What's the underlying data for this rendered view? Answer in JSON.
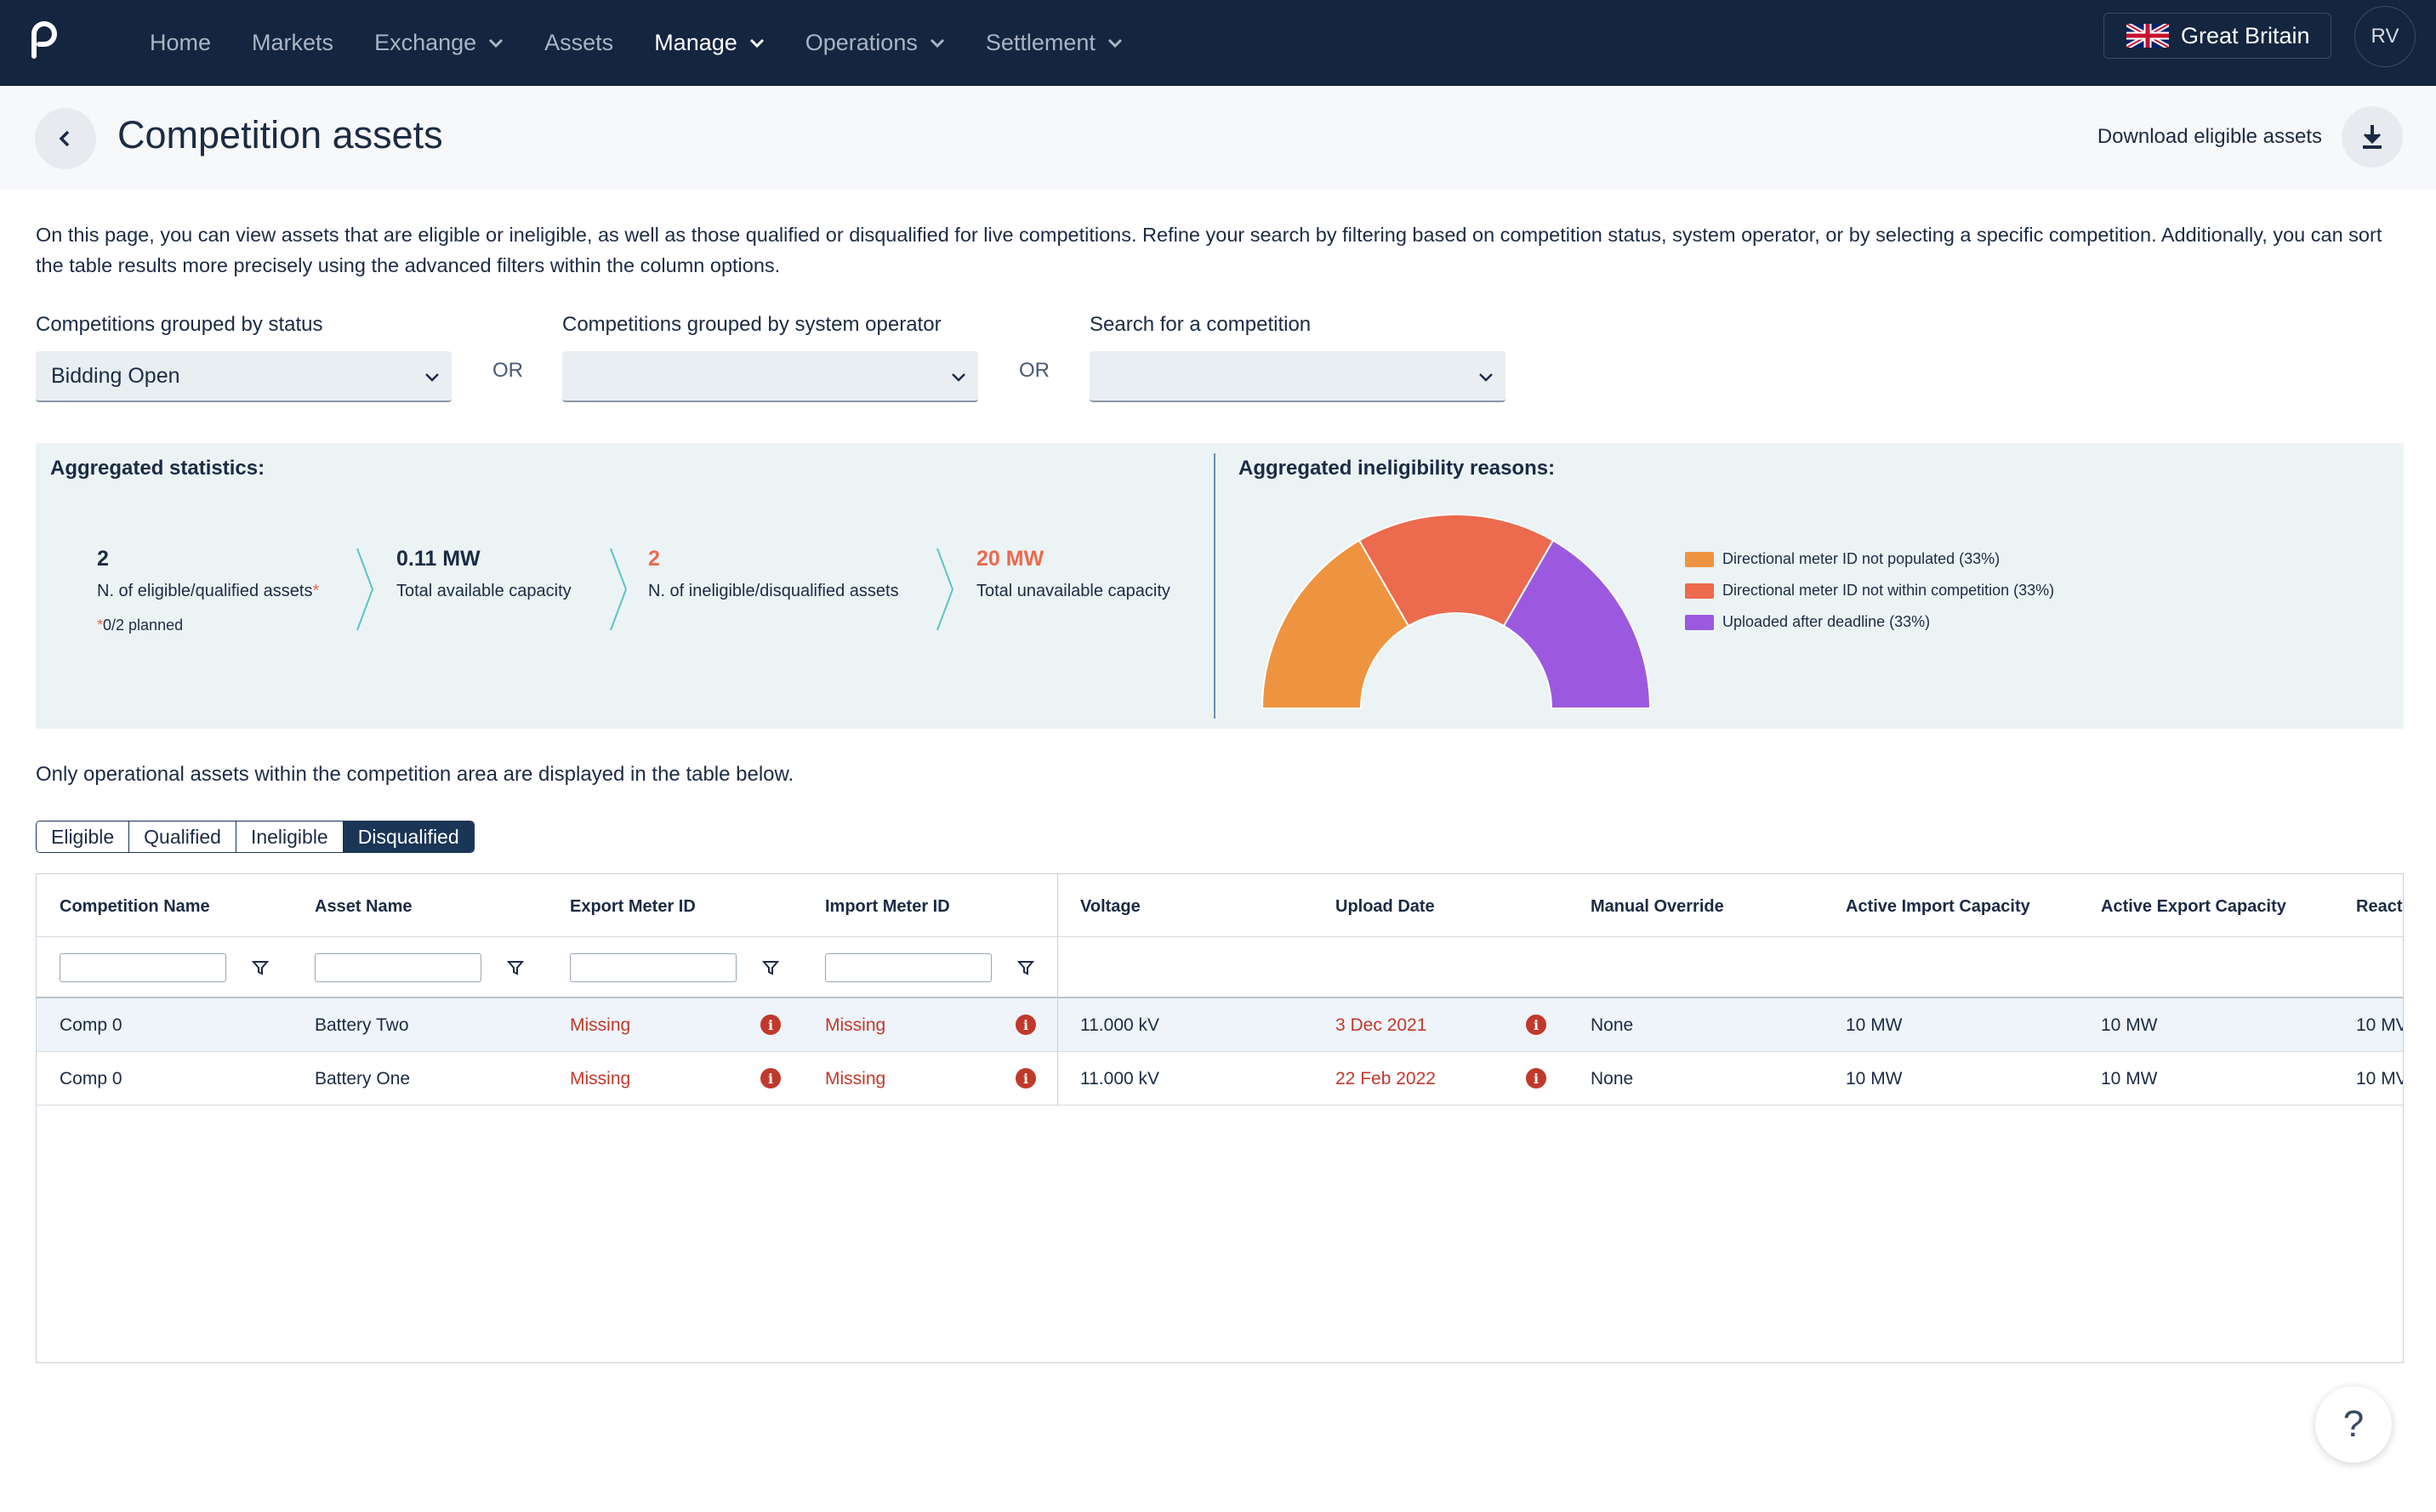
{
  "nav": {
    "items": [
      {
        "label": "Home",
        "dropdown": false,
        "active": false
      },
      {
        "label": "Markets",
        "dropdown": false,
        "active": false
      },
      {
        "label": "Exchange",
        "dropdown": true,
        "active": false
      },
      {
        "label": "Assets",
        "dropdown": false,
        "active": false
      },
      {
        "label": "Manage",
        "dropdown": true,
        "active": true
      },
      {
        "label": "Operations",
        "dropdown": true,
        "active": false
      },
      {
        "label": "Settlement",
        "dropdown": true,
        "active": false
      }
    ],
    "region": "Great Britain",
    "avatar_initials": "RV"
  },
  "header": {
    "title": "Competition assets",
    "download_label": "Download eligible assets"
  },
  "intro_text": "On this page, you can view assets that are eligible or ineligible, as well as those qualified or disqualified for live competitions. Refine your search by filtering based on competition status, system operator, or by selecting a specific competition. Additionally, you can sort the table results more precisely using the advanced filters within the column options.",
  "filters": {
    "status_label": "Competitions grouped by status",
    "status_value": "Bidding Open",
    "operator_label": "Competitions grouped by system operator",
    "operator_value": "",
    "competition_label": "Search for a competition",
    "competition_value": "",
    "or_text": "OR"
  },
  "stats": {
    "title": "Aggregated statistics:",
    "eligible_count": "2",
    "eligible_label": "N. of eligible/qualified assets",
    "eligible_asterisk": "*",
    "planned_note": "0/2 planned",
    "available_capacity": "0.11 MW",
    "available_label": "Total available capacity",
    "ineligible_count": "2",
    "ineligible_label": "N. of ineligible/disqualified assets",
    "unavailable_capacity": "20 MW",
    "unavailable_label": "Total unavailable capacity"
  },
  "ineligibility": {
    "title": "Aggregated ineligibility reasons:",
    "legend": [
      {
        "label": "Directional meter ID not populated (33%)",
        "color": "#ee9440"
      },
      {
        "label": "Directional meter ID not within competition (33%)",
        "color": "#ec6a4d"
      },
      {
        "label": "Uploaded after deadline (33%)",
        "color": "#9b59e0"
      }
    ]
  },
  "chart_data": {
    "type": "pie",
    "variant": "half-donut",
    "categories": [
      "Directional meter ID not populated",
      "Directional meter ID not within competition",
      "Uploaded after deadline"
    ],
    "values": [
      33,
      33,
      33
    ],
    "colors": [
      "#ee9440",
      "#ec6a4d",
      "#9b59e0"
    ],
    "legend_position": "right"
  },
  "table_note": "Only operational assets within the competition area are displayed in the table below.",
  "tabs": [
    {
      "label": "Eligible",
      "active": false
    },
    {
      "label": "Qualified",
      "active": false
    },
    {
      "label": "Ineligible",
      "active": false
    },
    {
      "label": "Disqualified",
      "active": true
    }
  ],
  "table": {
    "columns": [
      "Competition Name",
      "Asset Name",
      "Export Meter ID",
      "Import Meter ID",
      "Voltage",
      "Upload Date",
      "Manual Override",
      "Active Import Capacity",
      "Active Export Capacity",
      "React"
    ],
    "rows": [
      {
        "competition": "Comp 0",
        "asset": "Battery Two",
        "export_meter": "Missing",
        "import_meter": "Missing",
        "voltage": "11.000 kV",
        "upload_date": "3 Dec 2021",
        "override": "None",
        "import_cap": "10 MW",
        "export_cap": "10 MW",
        "reactive": "10 MV"
      },
      {
        "competition": "Comp 0",
        "asset": "Battery One",
        "export_meter": "Missing",
        "import_meter": "Missing",
        "voltage": "11.000 kV",
        "upload_date": "22 Feb 2022",
        "override": "None",
        "import_cap": "10 MW",
        "export_cap": "10 MW",
        "reactive": "10 MV"
      }
    ]
  },
  "help_label": "?"
}
